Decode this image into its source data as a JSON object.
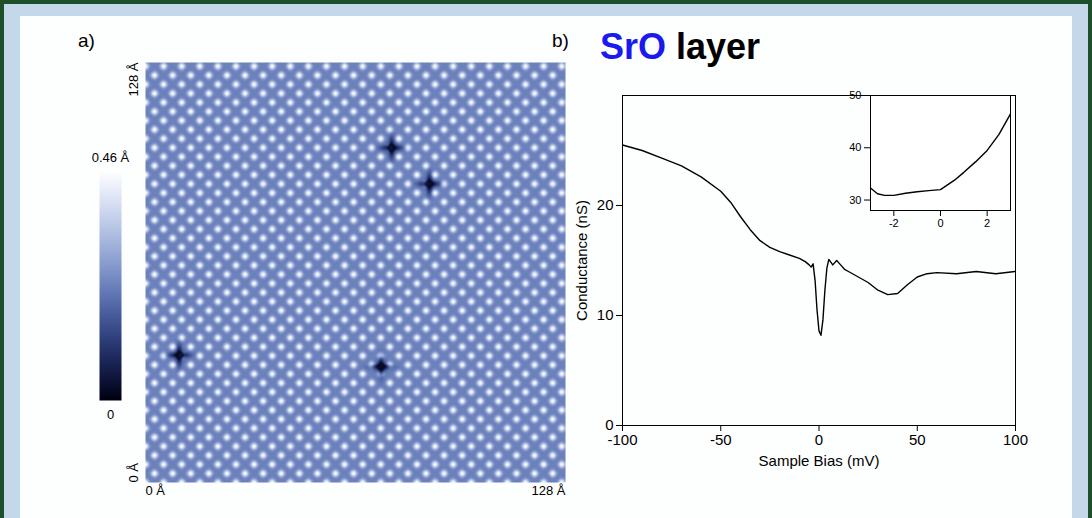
{
  "chart_data": [
    {
      "type": "heatmap",
      "panel": "a)",
      "xlim": [
        0,
        128
      ],
      "ylim": [
        0,
        128
      ],
      "xticks": [
        {
          "value": 0,
          "label": "0 Å"
        },
        {
          "value": 128,
          "label": "128 Å"
        }
      ],
      "yticks": [
        {
          "value": 0,
          "label": "0 Å"
        },
        {
          "value": 128,
          "label": "128 Å"
        }
      ],
      "colorbar": {
        "range": [
          0,
          0.46
        ],
        "ticks": [
          {
            "value": 0,
            "label": "0"
          },
          {
            "value": 0.46,
            "label": "0.46 Å"
          }
        ]
      },
      "lattice_period": 3.9,
      "defects": {
        "x": [
          75,
          86.5,
          10.3,
          71.8
        ],
        "y": [
          102,
          91,
          38.8,
          35.3
        ]
      }
    },
    {
      "type": "line",
      "panel": "b)",
      "title": "SrO layer",
      "xlabel": "Sample Bias (mV)",
      "ylabel": "Conductance (nS)",
      "xlim": [
        -100,
        100
      ],
      "ylim": [
        0,
        30
      ],
      "xticks": [
        -100,
        -50,
        0,
        50,
        100
      ],
      "yticks": [
        0,
        10,
        20
      ],
      "color": "#000000",
      "x": [
        -100,
        -90,
        -80,
        -70,
        -60,
        -50,
        -45,
        -40,
        -35,
        -30,
        -25,
        -20,
        -15,
        -10,
        -7,
        -5,
        -4,
        -3,
        -2,
        -1,
        0,
        1,
        2,
        3,
        4,
        5,
        7,
        9,
        11,
        13,
        15,
        20,
        25,
        30,
        35,
        40,
        45,
        50,
        55,
        60,
        70,
        80,
        90,
        100
      ],
      "values": [
        25.5,
        25,
        24.3,
        23.6,
        22.6,
        21.3,
        20.3,
        19,
        17.8,
        16.8,
        16.2,
        15.8,
        15.5,
        15.2,
        14.9,
        14.6,
        14.4,
        14.7,
        13.2,
        10.5,
        8.6,
        8.2,
        9.6,
        12.3,
        14.3,
        15.1,
        14.6,
        15.0,
        14.6,
        14.2,
        14.0,
        13.5,
        13.0,
        12.3,
        11.9,
        12.0,
        12.8,
        13.5,
        13.8,
        13.9,
        13.8,
        14.0,
        13.8,
        14.0
      ]
    },
    {
      "type": "line",
      "xlim": [
        -3,
        3
      ],
      "ylim": [
        28,
        50
      ],
      "xticks": [
        -2,
        0,
        2
      ],
      "yticks": [
        30,
        40,
        50
      ],
      "color": "#000000",
      "x": [
        -3,
        -2.7,
        -2.4,
        -2,
        -1.5,
        -1,
        -0.5,
        0,
        0.3,
        0.6,
        1,
        1.5,
        2,
        2.5,
        3
      ],
      "values": [
        32.3,
        31.2,
        30.9,
        30.9,
        31.3,
        31.6,
        31.8,
        32,
        32.9,
        33.8,
        35.3,
        37.3,
        39.5,
        42.5,
        46.5
      ]
    }
  ]
}
